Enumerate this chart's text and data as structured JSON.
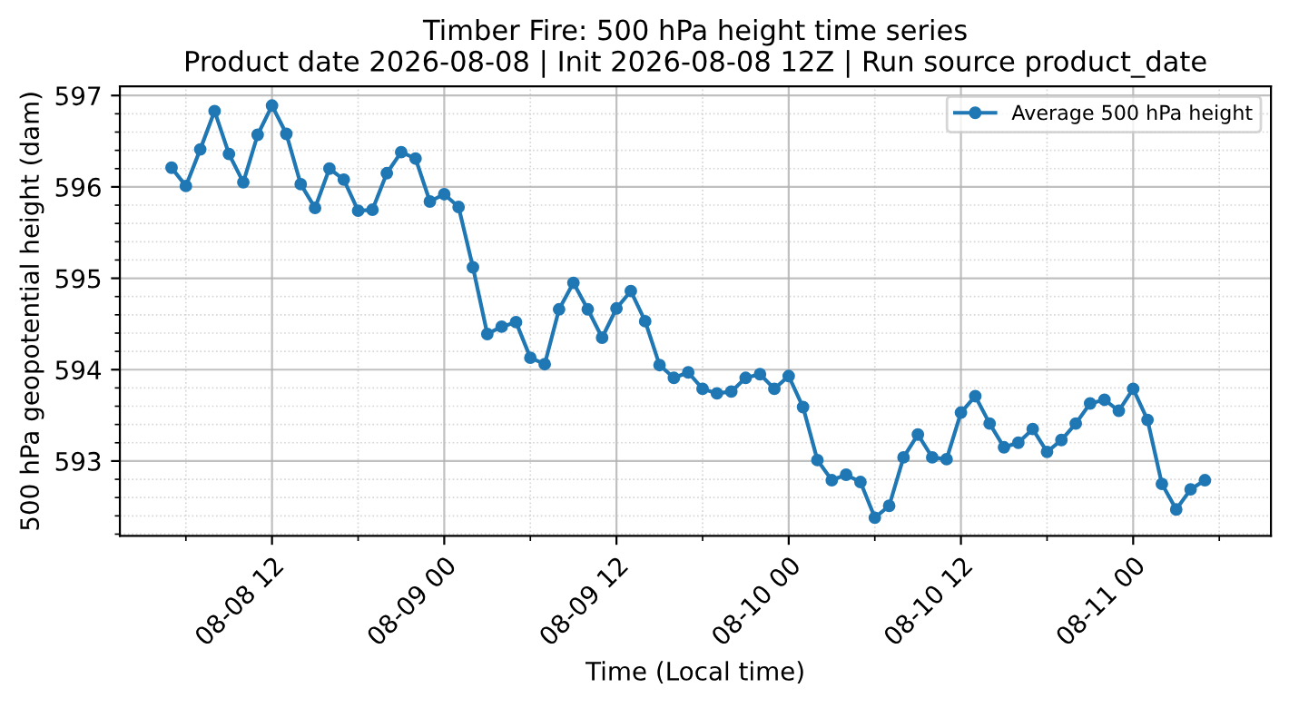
{
  "chart_data": {
    "type": "line",
    "title": "Timber Fire: 500 hPa height time series\nProduct date 2026-08-08 | Init 2026-08-08 12Z | Run source product_date",
    "xlabel": "Time (Local time)",
    "ylabel": "500 hPa geopotential height (dam)",
    "x": [
      "2026-08-08T05:00",
      "2026-08-08T06:00",
      "2026-08-08T07:00",
      "2026-08-08T08:00",
      "2026-08-08T09:00",
      "2026-08-08T10:00",
      "2026-08-08T11:00",
      "2026-08-08T12:00",
      "2026-08-08T13:00",
      "2026-08-08T14:00",
      "2026-08-08T15:00",
      "2026-08-08T16:00",
      "2026-08-08T17:00",
      "2026-08-08T18:00",
      "2026-08-08T19:00",
      "2026-08-08T20:00",
      "2026-08-08T21:00",
      "2026-08-08T22:00",
      "2026-08-08T23:00",
      "2026-08-09T00:00",
      "2026-08-09T01:00",
      "2026-08-09T02:00",
      "2026-08-09T03:00",
      "2026-08-09T04:00",
      "2026-08-09T05:00",
      "2026-08-09T06:00",
      "2026-08-09T07:00",
      "2026-08-09T08:00",
      "2026-08-09T09:00",
      "2026-08-09T10:00",
      "2026-08-09T11:00",
      "2026-08-09T12:00",
      "2026-08-09T13:00",
      "2026-08-09T14:00",
      "2026-08-09T15:00",
      "2026-08-09T16:00",
      "2026-08-09T17:00",
      "2026-08-09T18:00",
      "2026-08-09T19:00",
      "2026-08-09T20:00",
      "2026-08-09T21:00",
      "2026-08-09T22:00",
      "2026-08-09T23:00",
      "2026-08-10T00:00",
      "2026-08-10T01:00",
      "2026-08-10T02:00",
      "2026-08-10T03:00",
      "2026-08-10T04:00",
      "2026-08-10T05:00",
      "2026-08-10T06:00",
      "2026-08-10T07:00",
      "2026-08-10T08:00",
      "2026-08-10T09:00",
      "2026-08-10T10:00",
      "2026-08-10T11:00",
      "2026-08-10T12:00",
      "2026-08-10T13:00",
      "2026-08-10T14:00",
      "2026-08-10T15:00",
      "2026-08-10T16:00",
      "2026-08-10T17:00",
      "2026-08-10T18:00",
      "2026-08-10T19:00",
      "2026-08-10T20:00",
      "2026-08-10T21:00",
      "2026-08-10T22:00",
      "2026-08-10T23:00",
      "2026-08-11T00:00",
      "2026-08-11T01:00",
      "2026-08-11T02:00",
      "2026-08-11T03:00",
      "2026-08-11T04:00",
      "2026-08-11T05:00"
    ],
    "series": [
      {
        "name": "Average 500 hPa height",
        "color": "#1f77b4",
        "values": [
          596.21,
          596.01,
          596.41,
          596.83,
          596.36,
          596.05,
          596.57,
          596.89,
          596.58,
          596.03,
          595.77,
          596.2,
          596.08,
          595.74,
          595.75,
          596.15,
          596.38,
          596.31,
          595.84,
          595.92,
          595.78,
          595.12,
          594.39,
          594.47,
          594.52,
          594.13,
          594.06,
          594.66,
          594.95,
          594.66,
          594.35,
          594.67,
          594.86,
          594.53,
          594.05,
          593.91,
          593.97,
          593.79,
          593.74,
          593.76,
          593.91,
          593.95,
          593.79,
          593.93,
          593.59,
          593.01,
          592.79,
          592.85,
          592.77,
          592.38,
          592.51,
          593.04,
          593.29,
          593.04,
          593.02,
          593.53,
          593.71,
          593.41,
          593.15,
          593.2,
          593.35,
          593.1,
          593.23,
          593.41,
          593.63,
          593.67,
          593.55,
          593.79,
          593.45,
          592.75,
          592.47,
          592.69,
          592.79
        ]
      }
    ],
    "xlim": [
      "2026-08-08T01:24",
      "2026-08-11T09:36"
    ],
    "xticks": [
      {
        "value": "2026-08-08T06:00",
        "label": null
      },
      {
        "value": "2026-08-08T12:00",
        "label": "08-08 12"
      },
      {
        "value": "2026-08-08T18:00",
        "label": null
      },
      {
        "value": "2026-08-09T00:00",
        "label": "08-09 00"
      },
      {
        "value": "2026-08-09T06:00",
        "label": null
      },
      {
        "value": "2026-08-09T12:00",
        "label": "08-09 12"
      },
      {
        "value": "2026-08-09T18:00",
        "label": null
      },
      {
        "value": "2026-08-10T00:00",
        "label": "08-10 00"
      },
      {
        "value": "2026-08-10T06:00",
        "label": null
      },
      {
        "value": "2026-08-10T12:00",
        "label": "08-10 12"
      },
      {
        "value": "2026-08-10T18:00",
        "label": null
      },
      {
        "value": "2026-08-11T00:00",
        "label": "08-11 00"
      },
      {
        "value": "2026-08-11T06:00",
        "label": null
      }
    ],
    "ylim": [
      592.18,
      597.1
    ],
    "yticks": [
      {
        "value": 592.2,
        "label": null
      },
      {
        "value": 592.4,
        "label": null
      },
      {
        "value": 592.6,
        "label": null
      },
      {
        "value": 592.8,
        "label": null
      },
      593,
      {
        "value": 593.2,
        "label": null
      },
      {
        "value": 593.4,
        "label": null
      },
      {
        "value": 593.6,
        "label": null
      },
      {
        "value": 593.8,
        "label": null
      },
      594,
      {
        "value": 594.2,
        "label": null
      },
      {
        "value": 594.4,
        "label": null
      },
      {
        "value": 594.6,
        "label": null
      },
      {
        "value": 594.8,
        "label": null
      },
      595,
      {
        "value": 595.2,
        "label": null
      },
      {
        "value": 595.4,
        "label": null
      },
      {
        "value": 595.6,
        "label": null
      },
      {
        "value": 595.8,
        "label": null
      },
      596,
      {
        "value": 596.2,
        "label": null
      },
      {
        "value": 596.4,
        "label": null
      },
      {
        "value": 596.6,
        "label": null
      },
      {
        "value": 596.8,
        "label": null
      },
      597
    ],
    "grid": true,
    "legend": "top right",
    "marker": "circle",
    "line_style": "solid"
  }
}
